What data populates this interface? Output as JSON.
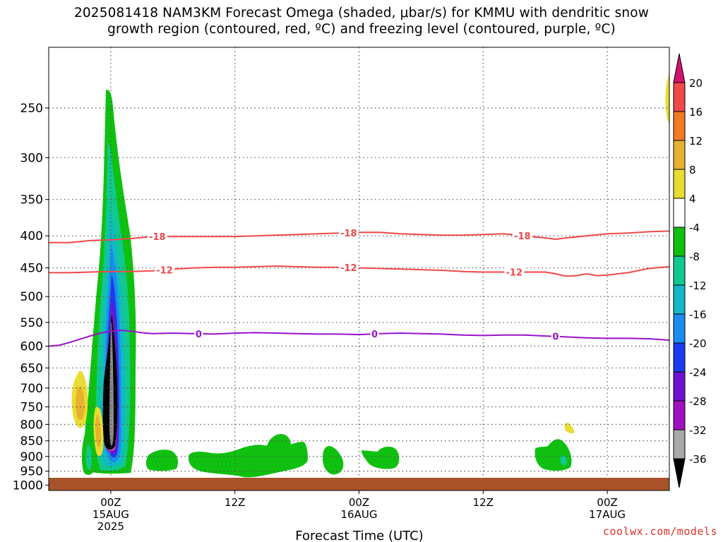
{
  "title": {
    "line1": "2025081418 NAM3KM Forecast Omega (shaded, μbar/s) for KMMU with dendritic snow",
    "line2": "growth region (contoured, red, ºC) and freezing level (contoured, purple, ºC)"
  },
  "credit": "coolwx.com/models",
  "colors": {
    "dendritic": "#f04848",
    "freezing": "#9a12c8",
    "ground": "#a8522a",
    "grid": "#555555"
  },
  "chart_data": {
    "type": "heatmap",
    "title": "2025081418 NAM3KM Forecast Omega (shaded, μbar/s) for KMMU with dendritic snow growth region (contoured, red, ºC) and freezing level (contoured, purple, ºC)",
    "xlabel": "Forecast Time (UTC)",
    "ylabel": "",
    "y_axis": {
      "scale": "pressure (hPa), inverted",
      "ticks": [
        250,
        300,
        350,
        400,
        450,
        500,
        550,
        600,
        650,
        700,
        750,
        800,
        850,
        900,
        950,
        1000
      ],
      "range": [
        1020,
        200
      ]
    },
    "x_axis": {
      "range_hours_from_start": [
        0,
        60
      ],
      "ticks": [
        {
          "hour": 6,
          "line1": "00Z",
          "line2": "15AUG",
          "line3": "2025"
        },
        {
          "hour": 18,
          "line1": "12Z",
          "line2": "",
          "line3": ""
        },
        {
          "hour": 30,
          "line1": "00Z",
          "line2": "16AUG",
          "line3": ""
        },
        {
          "hour": 42,
          "line1": "12Z",
          "line2": "",
          "line3": ""
        },
        {
          "hour": 54,
          "line1": "00Z",
          "line2": "17AUG",
          "line3": ""
        }
      ],
      "grid": "dotted"
    },
    "colorbar": {
      "levels": [
        20,
        16,
        12,
        8,
        4,
        -4,
        -8,
        -12,
        -16,
        -20,
        -24,
        -28,
        -32,
        -36
      ],
      "colors": [
        "#d4126e",
        "#f04848",
        "#f27a22",
        "#e8b030",
        "#e8dc30",
        "#ffffff",
        "#10c010",
        "#10c890",
        "#12b8c8",
        "#1a8cf0",
        "#1a3cf0",
        "#7010d0",
        "#a010c0",
        "#a8a8a8",
        "#000000"
      ]
    },
    "contours": [
      {
        "name": "dendritic -18",
        "label": "-18",
        "color": "#f04848",
        "points": [
          [
            0,
            410
          ],
          [
            2,
            410
          ],
          [
            4,
            407
          ],
          [
            6,
            406
          ],
          [
            8,
            404
          ],
          [
            10,
            401
          ],
          [
            12,
            401
          ],
          [
            14,
            401
          ],
          [
            16,
            401
          ],
          [
            18,
            401
          ],
          [
            20,
            400
          ],
          [
            22,
            399
          ],
          [
            24,
            398
          ],
          [
            26,
            397
          ],
          [
            28,
            396
          ],
          [
            30,
            395
          ],
          [
            32,
            395
          ],
          [
            34,
            397
          ],
          [
            36,
            398
          ],
          [
            38,
            399
          ],
          [
            40,
            399
          ],
          [
            42,
            398
          ],
          [
            44,
            397
          ],
          [
            46,
            400
          ],
          [
            48,
            403
          ],
          [
            49,
            405
          ],
          [
            50,
            403
          ],
          [
            52,
            400
          ],
          [
            54,
            397
          ],
          [
            56,
            396
          ],
          [
            58,
            394
          ],
          [
            60,
            393
          ]
        ],
        "label_positions": [
          10.5,
          29,
          45.8
        ]
      },
      {
        "name": "dendritic -12",
        "label": "-12",
        "color": "#f04848",
        "points": [
          [
            0,
            458
          ],
          [
            2,
            458
          ],
          [
            4,
            457
          ],
          [
            6,
            456
          ],
          [
            8,
            456
          ],
          [
            10,
            455
          ],
          [
            12,
            452
          ],
          [
            14,
            450
          ],
          [
            16,
            449
          ],
          [
            18,
            449
          ],
          [
            20,
            448
          ],
          [
            22,
            447
          ],
          [
            24,
            448
          ],
          [
            26,
            449
          ],
          [
            28,
            449
          ],
          [
            30,
            450
          ],
          [
            32,
            451
          ],
          [
            34,
            452
          ],
          [
            36,
            453
          ],
          [
            38,
            454
          ],
          [
            40,
            456
          ],
          [
            42,
            457
          ],
          [
            44,
            457
          ],
          [
            46,
            457
          ],
          [
            48,
            457
          ],
          [
            49,
            460
          ],
          [
            50,
            464
          ],
          [
            51,
            463
          ],
          [
            52,
            460
          ],
          [
            53,
            463
          ],
          [
            54,
            462
          ],
          [
            56,
            458
          ],
          [
            58,
            451
          ],
          [
            60,
            448
          ]
        ],
        "label_positions": [
          11.2,
          29,
          45
        ]
      },
      {
        "name": "freezing level 0",
        "label": "0",
        "color": "#9a12c8",
        "points": [
          [
            0,
            600
          ],
          [
            1,
            598
          ],
          [
            2,
            592
          ],
          [
            3,
            585
          ],
          [
            4,
            578
          ],
          [
            5,
            572
          ],
          [
            6,
            568
          ],
          [
            7,
            566
          ],
          [
            8,
            568
          ],
          [
            9,
            571
          ],
          [
            10,
            573
          ],
          [
            12,
            572
          ],
          [
            14,
            573
          ],
          [
            16,
            574
          ],
          [
            18,
            572
          ],
          [
            20,
            571
          ],
          [
            22,
            572
          ],
          [
            24,
            573
          ],
          [
            26,
            574
          ],
          [
            28,
            574
          ],
          [
            30,
            575
          ],
          [
            32,
            573
          ],
          [
            34,
            572
          ],
          [
            36,
            573
          ],
          [
            38,
            574
          ],
          [
            40,
            576
          ],
          [
            42,
            577
          ],
          [
            44,
            576
          ],
          [
            46,
            576
          ],
          [
            48,
            578
          ],
          [
            50,
            580
          ],
          [
            52,
            582
          ],
          [
            54,
            583
          ],
          [
            56,
            583
          ],
          [
            58,
            584
          ],
          [
            60,
            587
          ]
        ],
        "label_positions": [
          14.5,
          31.5,
          49
        ]
      }
    ]
  }
}
